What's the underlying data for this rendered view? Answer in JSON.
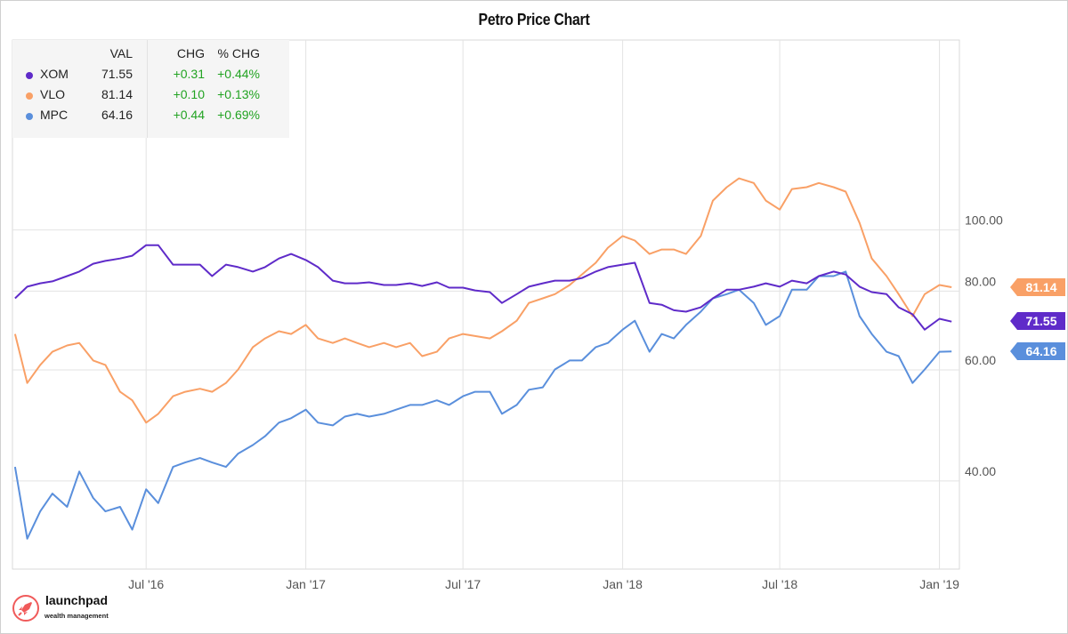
{
  "chart_data": {
    "type": "line",
    "title": "Petro Price Chart",
    "y_scale": "log",
    "ylim": [
      29,
      200
    ],
    "xlim": [
      "2016-01-29",
      "2019-01-24"
    ],
    "grid": true,
    "legend_position": "top-left",
    "y_ticks": [
      {
        "value": 40,
        "label": "40.00"
      },
      {
        "value": 60,
        "label": "60.00"
      },
      {
        "value": 80,
        "label": "80.00"
      },
      {
        "value": 100,
        "label": "100.00"
      }
    ],
    "x_ticks": [
      {
        "date": "2016-07-01",
        "label": "Jul '16"
      },
      {
        "date": "2017-01-01",
        "label": "Jan '17"
      },
      {
        "date": "2017-07-01",
        "label": "Jul '17"
      },
      {
        "date": "2018-01-01",
        "label": "Jan '18"
      },
      {
        "date": "2018-07-01",
        "label": "Jul '18"
      },
      {
        "date": "2019-01-01",
        "label": "Jan '19"
      }
    ],
    "x": [
      "2016-02-01",
      "2016-02-15",
      "2016-03-01",
      "2016-03-15",
      "2016-04-01",
      "2016-04-15",
      "2016-05-01",
      "2016-05-15",
      "2016-06-01",
      "2016-06-15",
      "2016-07-01",
      "2016-07-15",
      "2016-08-01",
      "2016-08-15",
      "2016-09-01",
      "2016-09-15",
      "2016-10-01",
      "2016-10-15",
      "2016-11-01",
      "2016-11-15",
      "2016-12-01",
      "2016-12-15",
      "2017-01-01",
      "2017-01-15",
      "2017-02-01",
      "2017-02-15",
      "2017-03-01",
      "2017-03-15",
      "2017-04-01",
      "2017-04-15",
      "2017-05-01",
      "2017-05-15",
      "2017-06-01",
      "2017-06-15",
      "2017-07-01",
      "2017-07-15",
      "2017-08-01",
      "2017-08-15",
      "2017-09-01",
      "2017-09-15",
      "2017-10-01",
      "2017-10-15",
      "2017-11-01",
      "2017-11-15",
      "2017-12-01",
      "2017-12-15",
      "2018-01-01",
      "2018-01-15",
      "2018-02-01",
      "2018-02-15",
      "2018-03-01",
      "2018-03-15",
      "2018-04-01",
      "2018-04-15",
      "2018-05-01",
      "2018-05-15",
      "2018-06-01",
      "2018-06-15",
      "2018-07-01",
      "2018-07-15",
      "2018-08-01",
      "2018-08-15",
      "2018-09-01",
      "2018-09-15",
      "2018-10-01",
      "2018-10-15",
      "2018-11-01",
      "2018-11-15",
      "2018-12-01",
      "2018-12-15",
      "2019-01-01",
      "2019-01-15"
    ],
    "series": [
      {
        "name": "XOM",
        "color": "#5f2bc9",
        "last": "71.55",
        "values": [
          77.9,
          81.3,
          82.3,
          82.9,
          84.5,
          85.9,
          88.4,
          89.3,
          90.1,
          91.0,
          94.6,
          94.6,
          88.1,
          88.1,
          88.1,
          84.5,
          88.1,
          87.3,
          85.9,
          87.3,
          90.1,
          91.6,
          89.6,
          87.3,
          83.1,
          82.3,
          82.3,
          82.6,
          81.8,
          81.8,
          82.3,
          81.5,
          82.6,
          81.0,
          81.0,
          80.2,
          79.7,
          76.6,
          79.1,
          81.3,
          82.3,
          83.1,
          83.1,
          83.9,
          85.9,
          87.3,
          88.1,
          88.7,
          76.6,
          76.1,
          74.6,
          74.2,
          75.4,
          77.9,
          80.4,
          80.4,
          81.3,
          82.3,
          81.3,
          83.1,
          82.3,
          84.5,
          85.9,
          85.0,
          81.3,
          79.7,
          79.1,
          75.4,
          73.5,
          69.5,
          72.3,
          71.55
        ]
      },
      {
        "name": "VLO",
        "color": "#f9a066",
        "last": "81.14",
        "values": [
          68.4,
          57.2,
          61.1,
          64.1,
          65.6,
          66.2,
          62.1,
          61.1,
          55.4,
          53.7,
          49.5,
          51.1,
          54.5,
          55.4,
          56.0,
          55.4,
          57.2,
          60.1,
          65.2,
          67.3,
          69.1,
          68.4,
          70.7,
          67.3,
          66.2,
          67.3,
          66.2,
          65.2,
          66.2,
          65.2,
          66.2,
          63.1,
          64.1,
          67.3,
          68.4,
          67.9,
          67.3,
          69.1,
          71.8,
          76.6,
          77.9,
          79.1,
          81.8,
          85.0,
          88.7,
          93.7,
          97.8,
          96.2,
          91.6,
          93.1,
          93.1,
          91.6,
          97.8,
          111.3,
          116.9,
          120.7,
          118.7,
          111.3,
          107.7,
          116.1,
          116.9,
          118.7,
          116.9,
          115.0,
          102.6,
          90.1,
          84.5,
          79.1,
          73.0,
          79.1,
          81.8,
          81.14
        ]
      },
      {
        "name": "MPC",
        "color": "#5a8fdc",
        "last": "64.16",
        "values": [
          42.1,
          32.4,
          35.8,
          38.2,
          36.4,
          41.4,
          37.6,
          35.8,
          36.4,
          33.5,
          38.8,
          36.9,
          42.1,
          42.8,
          43.5,
          42.8,
          42.1,
          44.2,
          45.6,
          47.1,
          49.5,
          50.3,
          51.9,
          49.5,
          49.0,
          50.6,
          51.1,
          50.6,
          51.1,
          51.9,
          52.8,
          52.8,
          53.7,
          52.8,
          54.5,
          55.4,
          55.4,
          51.1,
          52.8,
          55.8,
          56.3,
          60.1,
          62.1,
          62.1,
          65.2,
          66.2,
          69.5,
          71.8,
          64.1,
          68.4,
          67.3,
          70.7,
          74.2,
          77.9,
          79.1,
          80.4,
          76.6,
          70.7,
          73.0,
          80.4,
          80.4,
          84.5,
          84.5,
          85.9,
          73.0,
          68.4,
          64.1,
          63.1,
          57.2,
          60.1,
          64.1,
          64.16
        ]
      }
    ]
  },
  "legend": {
    "headers": {
      "val": "VAL",
      "chg": "CHG",
      "pct": "% CHG"
    },
    "rows": [
      {
        "symbol": "XOM",
        "val": "71.55",
        "chg": "+0.31",
        "pct": "+0.44%"
      },
      {
        "symbol": "VLO",
        "val": "81.14",
        "chg": "+0.10",
        "pct": "+0.13%"
      },
      {
        "symbol": "MPC",
        "val": "64.16",
        "chg": "+0.44",
        "pct": "+0.69%"
      }
    ]
  },
  "logo": {
    "name": "launchpad",
    "tagline": "wealth management",
    "accent": "#f05a5a"
  }
}
